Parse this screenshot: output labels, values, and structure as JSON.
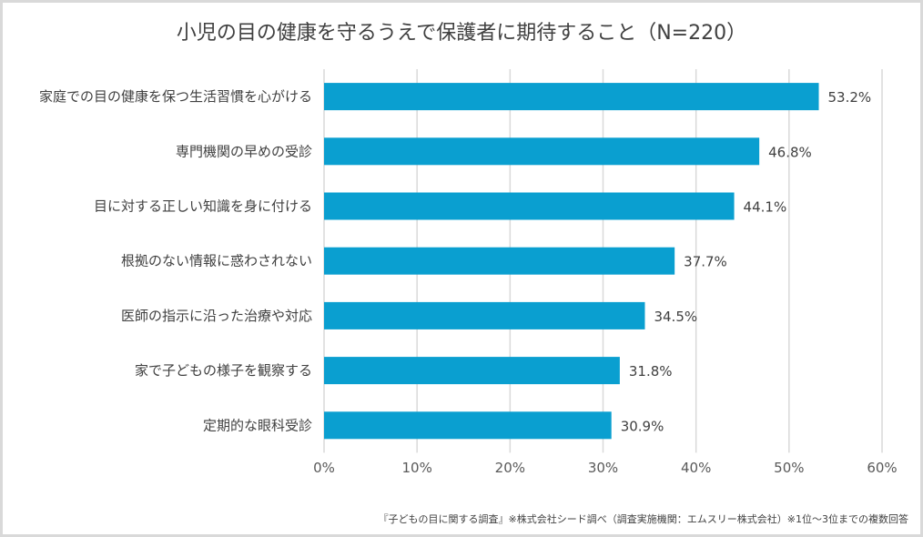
{
  "chart_data": {
    "type": "bar",
    "orientation": "horizontal",
    "title": "小児の目の健康を守るうえで保護者に期待すること（N=220）",
    "categories": [
      "家庭での目の健康を保つ生活習慣を心がける",
      "専門機関の早めの受診",
      "目に対する正しい知識を身に付ける",
      "根拠のない情報に惑わされない",
      "医師の指示に沿った治療や対応",
      "家で子どもの様子を観察する",
      "定期的な眼科受診"
    ],
    "values": [
      53.2,
      46.8,
      44.1,
      37.7,
      34.5,
      31.8,
      30.9
    ],
    "value_labels": [
      "53.2%",
      "46.8%",
      "44.1%",
      "37.7%",
      "34.5%",
      "31.8%",
      "30.9%"
    ],
    "xlim": [
      0,
      60
    ],
    "xticks": [
      0,
      10,
      20,
      30,
      40,
      50,
      60
    ],
    "xtick_labels": [
      "0%",
      "10%",
      "20%",
      "30%",
      "40%",
      "50%",
      "60%"
    ],
    "xlabel": "",
    "ylabel": "",
    "grid": true,
    "bar_color": "#0a9fd0",
    "source_note": "『子どもの目に関する調査』※株式会社シード調べ（調査実施機関：エムスリー株式会社）※1位～3位までの複数回答"
  }
}
